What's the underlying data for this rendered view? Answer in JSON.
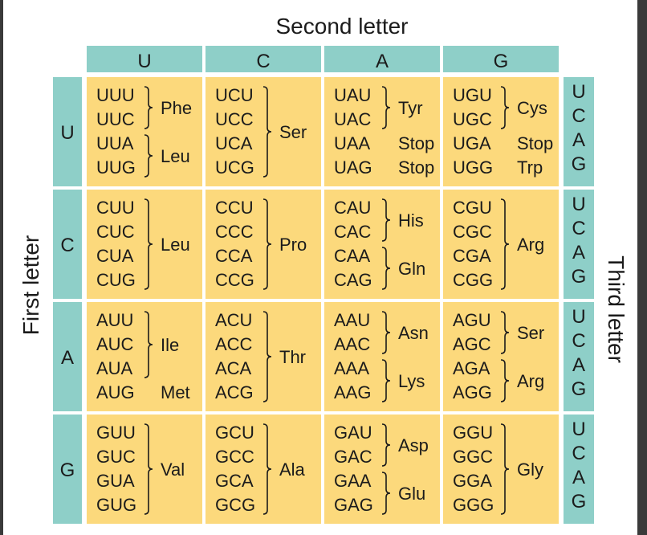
{
  "titles": {
    "top": "Second letter",
    "left": "First letter",
    "right": "Third letter"
  },
  "colors": {
    "header": "#8ecfc8",
    "cell": "#fcd97c",
    "text": "#1b1b1b",
    "background": "#ffffff"
  },
  "second_letters": [
    "U",
    "C",
    "A",
    "G"
  ],
  "first_letters": [
    "U",
    "C",
    "A",
    "G"
  ],
  "third_letters": [
    "U",
    "C",
    "A",
    "G"
  ],
  "cells": [
    [
      {
        "codons": [
          "UUU",
          "UUC",
          "UUA",
          "UUG"
        ],
        "groups": [
          {
            "label": "Phe",
            "span": [
              0,
              1
            ],
            "brace": true
          },
          {
            "label": "Leu",
            "span": [
              2,
              3
            ],
            "brace": true
          }
        ]
      },
      {
        "codons": [
          "UCU",
          "UCC",
          "UCA",
          "UCG"
        ],
        "groups": [
          {
            "label": "Ser",
            "span": [
              0,
              3
            ],
            "brace": true
          }
        ]
      },
      {
        "codons": [
          "UAU",
          "UAC",
          "UAA",
          "UAG"
        ],
        "groups": [
          {
            "label": "Tyr",
            "span": [
              0,
              1
            ],
            "brace": true
          },
          {
            "label": "Stop",
            "span": [
              2,
              2
            ],
            "brace": false
          },
          {
            "label": "Stop",
            "span": [
              3,
              3
            ],
            "brace": false
          }
        ]
      },
      {
        "codons": [
          "UGU",
          "UGC",
          "UGA",
          "UGG"
        ],
        "groups": [
          {
            "label": "Cys",
            "span": [
              0,
              1
            ],
            "brace": true
          },
          {
            "label": "Stop",
            "span": [
              2,
              2
            ],
            "brace": false
          },
          {
            "label": "Trp",
            "span": [
              3,
              3
            ],
            "brace": false
          }
        ]
      }
    ],
    [
      {
        "codons": [
          "CUU",
          "CUC",
          "CUA",
          "CUG"
        ],
        "groups": [
          {
            "label": "Leu",
            "span": [
              0,
              3
            ],
            "brace": true
          }
        ]
      },
      {
        "codons": [
          "CCU",
          "CCC",
          "CCA",
          "CCG"
        ],
        "groups": [
          {
            "label": "Pro",
            "span": [
              0,
              3
            ],
            "brace": true
          }
        ]
      },
      {
        "codons": [
          "CAU",
          "CAC",
          "CAA",
          "CAG"
        ],
        "groups": [
          {
            "label": "His",
            "span": [
              0,
              1
            ],
            "brace": true
          },
          {
            "label": "Gln",
            "span": [
              2,
              3
            ],
            "brace": true
          }
        ]
      },
      {
        "codons": [
          "CGU",
          "CGC",
          "CGA",
          "CGG"
        ],
        "groups": [
          {
            "label": "Arg",
            "span": [
              0,
              3
            ],
            "brace": true
          }
        ]
      }
    ],
    [
      {
        "codons": [
          "AUU",
          "AUC",
          "AUA",
          "AUG"
        ],
        "groups": [
          {
            "label": "Ile",
            "span": [
              0,
              2
            ],
            "brace": true
          },
          {
            "label": "Met",
            "span": [
              3,
              3
            ],
            "brace": false
          }
        ]
      },
      {
        "codons": [
          "ACU",
          "ACC",
          "ACA",
          "ACG"
        ],
        "groups": [
          {
            "label": "Thr",
            "span": [
              0,
              3
            ],
            "brace": true
          }
        ]
      },
      {
        "codons": [
          "AAU",
          "AAC",
          "AAA",
          "AAG"
        ],
        "groups": [
          {
            "label": "Asn",
            "span": [
              0,
              1
            ],
            "brace": true
          },
          {
            "label": "Lys",
            "span": [
              2,
              3
            ],
            "brace": true
          }
        ]
      },
      {
        "codons": [
          "AGU",
          "AGC",
          "AGA",
          "AGG"
        ],
        "groups": [
          {
            "label": "Ser",
            "span": [
              0,
              1
            ],
            "brace": true
          },
          {
            "label": "Arg",
            "span": [
              2,
              3
            ],
            "brace": true
          }
        ]
      }
    ],
    [
      {
        "codons": [
          "GUU",
          "GUC",
          "GUA",
          "GUG"
        ],
        "groups": [
          {
            "label": "Val",
            "span": [
              0,
              3
            ],
            "brace": true
          }
        ]
      },
      {
        "codons": [
          "GCU",
          "GCC",
          "GCA",
          "GCG"
        ],
        "groups": [
          {
            "label": "Ala",
            "span": [
              0,
              3
            ],
            "brace": true
          }
        ]
      },
      {
        "codons": [
          "GAU",
          "GAC",
          "GAA",
          "GAG"
        ],
        "groups": [
          {
            "label": "Asp",
            "span": [
              0,
              1
            ],
            "brace": true
          },
          {
            "label": "Glu",
            "span": [
              2,
              3
            ],
            "brace": true
          }
        ]
      },
      {
        "codons": [
          "GGU",
          "GGC",
          "GGA",
          "GGG"
        ],
        "groups": [
          {
            "label": "Gly",
            "span": [
              0,
              3
            ],
            "brace": true
          }
        ]
      }
    ]
  ]
}
